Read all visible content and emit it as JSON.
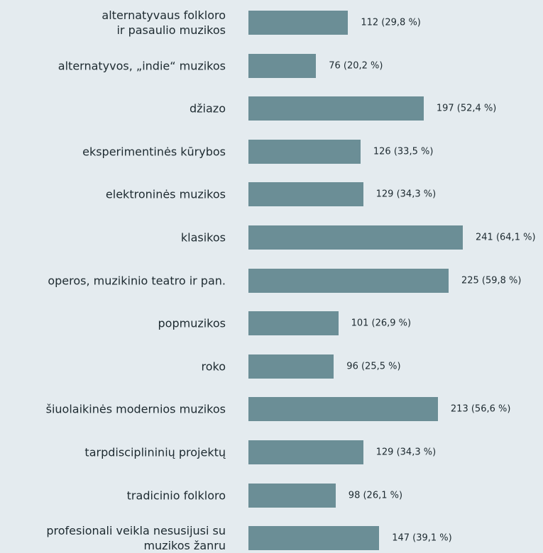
{
  "chart_data": {
    "type": "bar",
    "orientation": "horizontal",
    "color": "#6b8e96",
    "categories": [
      "alternatyvaus folkloro\nir pasaulio muzikos",
      "alternatyvos, „indie“ muzikos",
      "džiazo",
      "eksperimentinės kūrybos",
      "elektroninės muzikos",
      "klasikos",
      "operos, muzikinio teatro ir pan.",
      "popmuzikos",
      "roko",
      "šiuolaikinės modernios muzikos",
      "tarpdisciplininių projektų",
      "tradicinio folkloro",
      "profesionali veikla nesusijusi su\nmuzikos žanru"
    ],
    "values": [
      112,
      76,
      197,
      126,
      129,
      241,
      225,
      101,
      96,
      213,
      129,
      98,
      147
    ],
    "value_labels": [
      "112 (29,8 %)",
      "76 (20,2 %)",
      "197 (52,4 %)",
      "126 (33,5 %)",
      "129 (34,3 %)",
      "241 (64,1 %)",
      "225 (59,8 %)",
      "101 (26,9 %)",
      "96 (25,5 %)",
      "213 (56,6 %)",
      "129 (34,3 %)",
      "98 (26,1 %)",
      "147 (39,1 %)"
    ]
  }
}
